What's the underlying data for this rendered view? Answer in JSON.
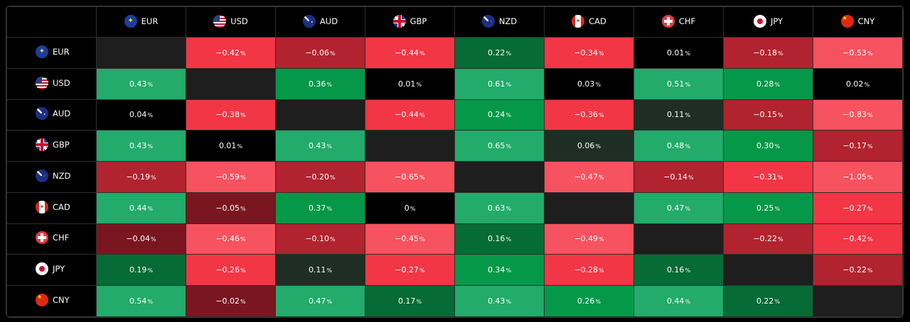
{
  "currencies": [
    "EUR",
    "USD",
    "AUD",
    "GBP",
    "NZD",
    "CAD",
    "CHF",
    "JPY",
    "CNY"
  ],
  "percent_sign": "%",
  "colors": {
    "diagonal": "#1e1e1e",
    "zero": "#000000",
    "green_dark": "#1e2e25",
    "green_mid": "#066b34",
    "green": "#059848",
    "green_light": "#22ab6a",
    "red_dark": "#7a1620",
    "red_mid": "#b0232f",
    "red": "#f23645",
    "red_light": "#f7525f"
  },
  "matrix": [
    [
      null,
      "−0.42",
      "−0.06",
      "−0.44",
      "0.22",
      "−0.34",
      "0.01",
      "−0.18",
      "−0.53"
    ],
    [
      "0.43",
      null,
      "0.36",
      "0.01",
      "0.61",
      "0.03",
      "0.51",
      "0.28",
      "0.02"
    ],
    [
      "0.04",
      "−0.38",
      null,
      "−0.44",
      "0.24",
      "−0.36",
      "0.11",
      "−0.15",
      "−0.83"
    ],
    [
      "0.43",
      "0.01",
      "0.43",
      null,
      "0.65",
      "0.06",
      "0.48",
      "0.30",
      "−0.17"
    ],
    [
      "−0.19",
      "−0.59",
      "−0.20",
      "−0.65",
      null,
      "−0.47",
      "−0.14",
      "−0.31",
      "−1.05"
    ],
    [
      "0.44",
      "−0.05",
      "0.37",
      "0",
      "0.63",
      null,
      "0.47",
      "0.25",
      "−0.27"
    ],
    [
      "−0.04",
      "−0.46",
      "−0.10",
      "−0.45",
      "0.16",
      "−0.49",
      null,
      "−0.22",
      "−0.42"
    ],
    [
      "0.19",
      "−0.26",
      "0.11",
      "−0.27",
      "0.34",
      "−0.28",
      "0.16",
      null,
      "−0.22"
    ],
    [
      "0.54",
      "−0.02",
      "0.47",
      "0.17",
      "0.43",
      "0.26",
      "0.44",
      "0.22",
      null
    ]
  ],
  "cell_colors": [
    [
      "diagonal",
      "red",
      "red_mid",
      "red",
      "green_mid",
      "red",
      "zero",
      "red_mid",
      "red_light"
    ],
    [
      "green_light",
      "diagonal",
      "green",
      "zero",
      "green_light",
      "zero",
      "green_light",
      "green",
      "zero"
    ],
    [
      "zero",
      "red",
      "diagonal",
      "red",
      "green",
      "red",
      "green_dark",
      "red_mid",
      "red_light"
    ],
    [
      "green_light",
      "zero",
      "green_light",
      "diagonal",
      "green_light",
      "green_dark",
      "green_light",
      "green",
      "red_mid"
    ],
    [
      "red_mid",
      "red_light",
      "red_mid",
      "red_light",
      "diagonal",
      "red_light",
      "red_mid",
      "red",
      "red_light"
    ],
    [
      "green_light",
      "red_dark",
      "green",
      "zero",
      "green_light",
      "diagonal",
      "green_light",
      "green",
      "red"
    ],
    [
      "red_dark",
      "red_light",
      "red_mid",
      "red_light",
      "green_mid",
      "red_light",
      "diagonal",
      "red_mid",
      "red"
    ],
    [
      "green_mid",
      "red",
      "green_dark",
      "red",
      "green",
      "red",
      "green_mid",
      "diagonal",
      "red_mid"
    ],
    [
      "green_light",
      "red_dark",
      "green_light",
      "green_mid",
      "green_light",
      "green",
      "green_light",
      "green_mid",
      "diagonal"
    ]
  ]
}
